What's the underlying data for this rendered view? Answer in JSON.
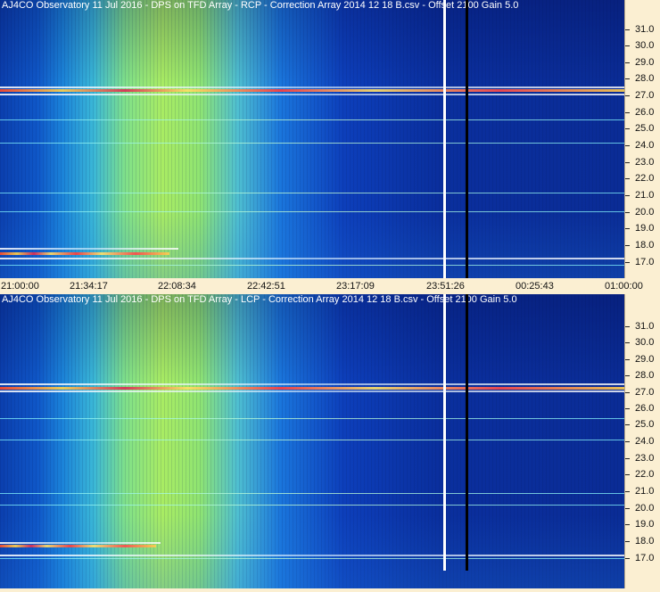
{
  "panels": [
    {
      "title": "AJ4CO Observatory 11 Jul 2016  -  DPS on TFD Array  -  RCP  -  Correction Array 2014 12 18 B.csv  -  Offset 2100  Gain 5.0",
      "y_labels": [
        "31.0",
        "30.0",
        "29.0",
        "28.0",
        "27.0",
        "26.0",
        "25.0",
        "24.0",
        "23.0",
        "22.0",
        "21.0",
        "20.0",
        "19.0",
        "18.0",
        "17.0"
      ],
      "x_labels": [
        "21:00:00",
        "21:34:17",
        "22:08:34",
        "22:42:51",
        "23:17:09",
        "23:51:26",
        "00:25:43",
        "01:00:00"
      ]
    },
    {
      "title": "AJ4CO Observatory 11 Jul 2016  -  DPS on TFD Array  -  LCP  -  Correction Array 2014 12 18 B.csv  -  Offset 2100  Gain 5.0",
      "y_labels": [
        "31.0",
        "30.0",
        "29.0",
        "28.0",
        "27.0",
        "26.0",
        "25.0",
        "24.0",
        "23.0",
        "22.0",
        "21.0",
        "20.0",
        "19.0",
        "18.0",
        "17.0"
      ]
    }
  ],
  "colors": {
    "background": "#fbefd2",
    "cursor_white": "#ffffff",
    "cursor_black": "#000000"
  }
}
